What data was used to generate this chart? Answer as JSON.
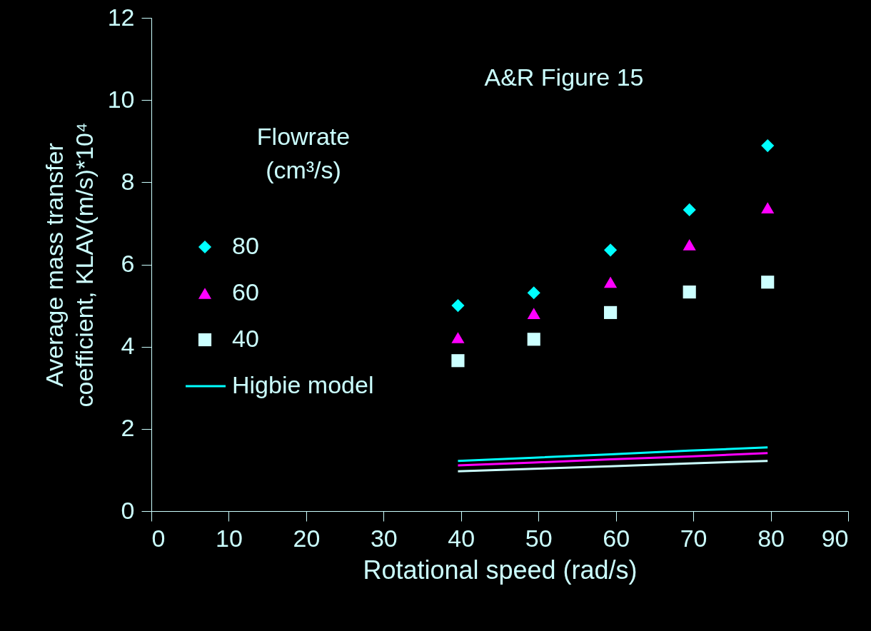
{
  "chart_data": {
    "type": "scatter",
    "title": "A&R Figure 15",
    "xlabel": "Rotational speed (rad/s)",
    "ylabel": "Average mass transfer\ncoefficient, KLAV(m/s)*10⁴",
    "legend_title": "Flowrate\n(cm³/s)",
    "x": [
      39.6,
      49.4,
      59.3,
      69.5,
      79.6
    ],
    "series": [
      {
        "name": "80",
        "marker": "diamond",
        "color": "#00ffff",
        "values": [
          5.0,
          5.31,
          6.35,
          7.33,
          8.89
        ]
      },
      {
        "name": "60",
        "marker": "triangle",
        "color": "#ff00ff",
        "values": [
          4.22,
          4.81,
          5.57,
          6.48,
          7.38
        ]
      },
      {
        "name": "40",
        "marker": "square",
        "color": "#ccffff",
        "values": [
          3.66,
          4.18,
          4.83,
          5.33,
          5.57
        ]
      },
      {
        "name": "Higbie model",
        "type": "line",
        "color": "#00ffff",
        "values": [
          1.22,
          1.3,
          1.38,
          1.47,
          1.55
        ]
      },
      {
        "type": "line",
        "color": "#ff00ff",
        "values": [
          1.11,
          1.18,
          1.26,
          1.33,
          1.41
        ]
      },
      {
        "type": "line",
        "color": "#ccffff",
        "values": [
          0.97,
          1.03,
          1.09,
          1.16,
          1.22
        ]
      }
    ],
    "xlim": [
      0,
      90
    ],
    "ylim": [
      0,
      12
    ],
    "xticks": [
      0,
      10,
      20,
      30,
      40,
      50,
      60,
      70,
      80,
      90
    ],
    "yticks": [
      0,
      2,
      4,
      6,
      8,
      10,
      12
    ],
    "grid": false,
    "legend": "left"
  }
}
